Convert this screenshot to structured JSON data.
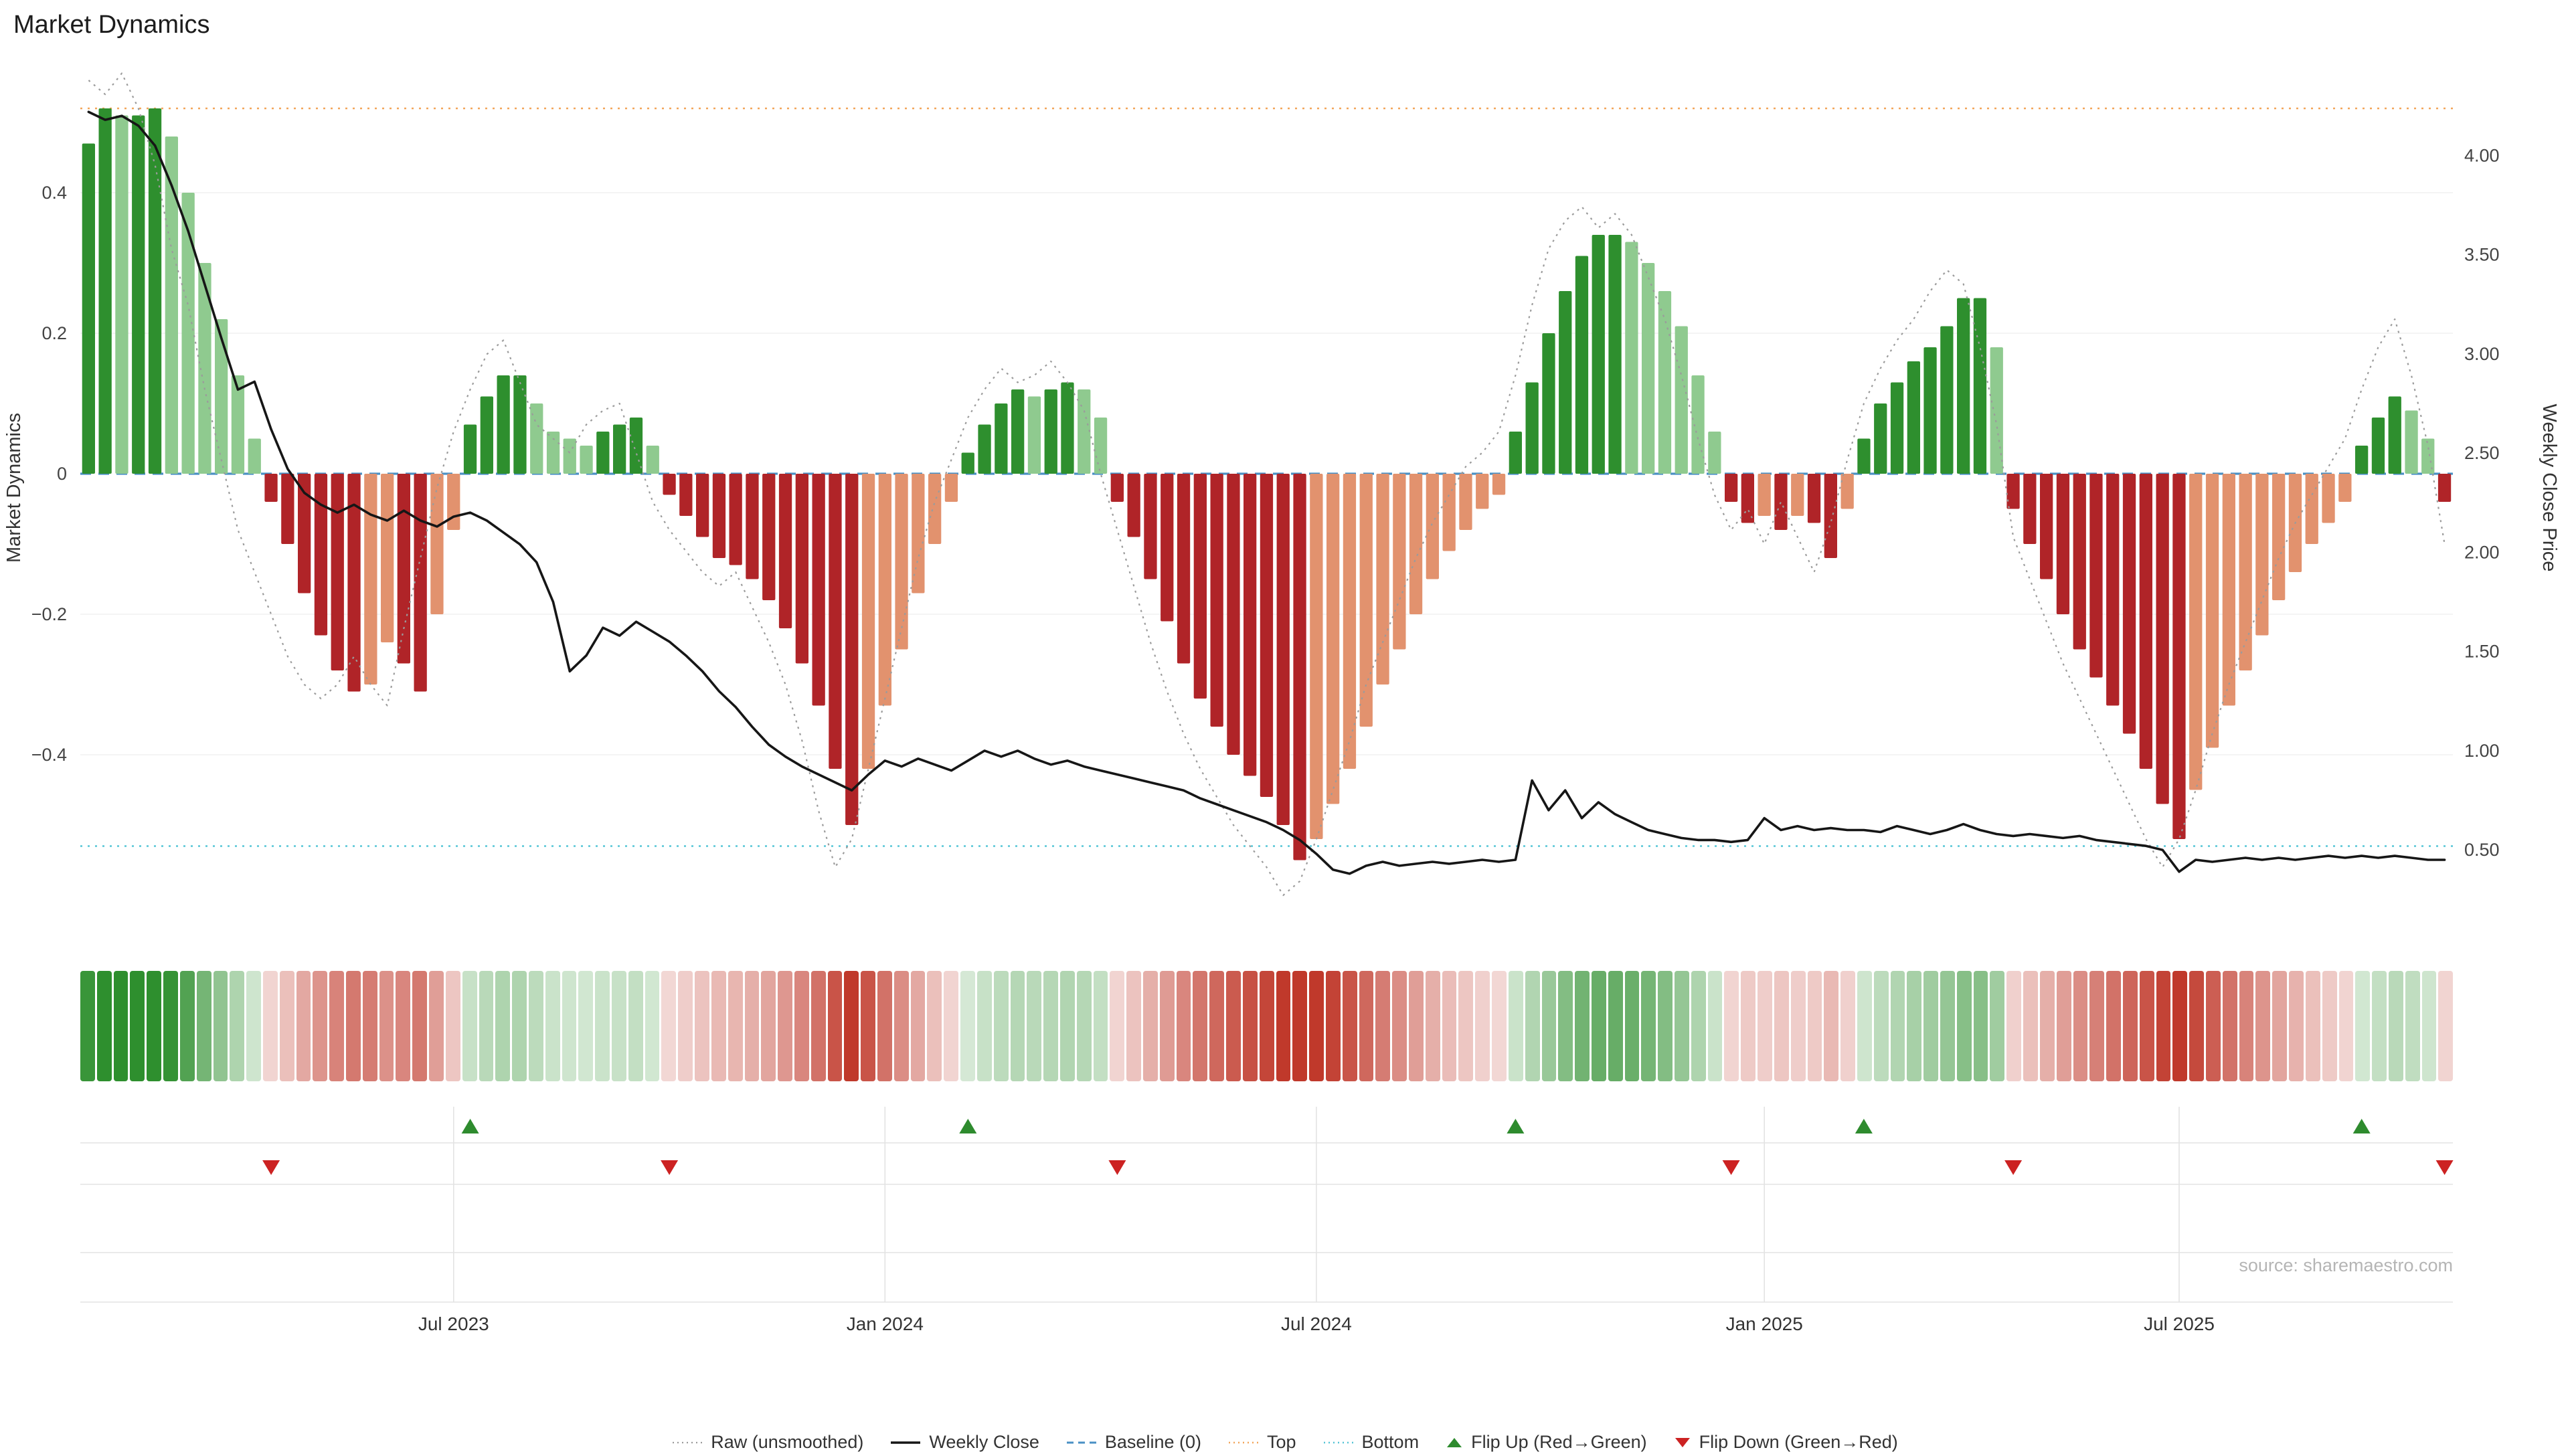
{
  "title": "Market Dynamics",
  "source_text": "source: sharemaestro.com",
  "axes": {
    "left_label": "Market Dynamics",
    "right_label": "Weekly Close Price",
    "left_ticks": [
      {
        "v": 0.4,
        "label": "0.4"
      },
      {
        "v": 0.2,
        "label": "0.2"
      },
      {
        "v": 0.0,
        "label": "0"
      },
      {
        "v": -0.2,
        "label": "−0.2"
      },
      {
        "v": -0.4,
        "label": "−0.4"
      }
    ],
    "right_ticks": [
      {
        "v": 4.0,
        "label": "4.00"
      },
      {
        "v": 3.5,
        "label": "3.50"
      },
      {
        "v": 3.0,
        "label": "3.00"
      },
      {
        "v": 2.5,
        "label": "2.50"
      },
      {
        "v": 2.0,
        "label": "2.00"
      },
      {
        "v": 1.5,
        "label": "1.50"
      },
      {
        "v": 1.0,
        "label": "1.00"
      },
      {
        "v": 0.5,
        "label": "0.50"
      }
    ],
    "x_ticks": [
      {
        "index": 22,
        "label": "Jul 2023"
      },
      {
        "index": 48,
        "label": "Jan 2024"
      },
      {
        "index": 74,
        "label": "Jul 2024"
      },
      {
        "index": 101,
        "label": "Jan 2025"
      },
      {
        "index": 126,
        "label": "Jul 2025"
      }
    ]
  },
  "legend": {
    "items": [
      {
        "id": "raw",
        "label": "Raw (unsmoothed)"
      },
      {
        "id": "weekly",
        "label": "Weekly Close"
      },
      {
        "id": "baseline",
        "label": "Baseline (0)"
      },
      {
        "id": "top",
        "label": "Top"
      },
      {
        "id": "bottom",
        "label": "Bottom"
      },
      {
        "id": "flip-up",
        "label": "Flip Up (Red→Green)"
      },
      {
        "id": "flip-down",
        "label": "Flip Down (Green→Red)"
      }
    ]
  },
  "chart_data": {
    "type": "bar+line",
    "title": "Market Dynamics",
    "left_ylabel": "Market Dynamics",
    "right_ylabel": "Weekly Close Price",
    "left_ylim": [
      -0.62,
      0.58
    ],
    "right_ylim": [
      0.2,
      4.45
    ],
    "baseline": 0,
    "top": 0.52,
    "bottom": -0.53,
    "oscillator": [
      0.47,
      0.52,
      0.51,
      0.51,
      0.52,
      0.48,
      0.4,
      0.3,
      0.22,
      0.14,
      0.05,
      -0.04,
      -0.1,
      -0.17,
      -0.23,
      -0.28,
      -0.31,
      -0.3,
      -0.24,
      -0.27,
      -0.31,
      -0.2,
      -0.08,
      0.07,
      0.11,
      0.14,
      0.14,
      0.1,
      0.06,
      0.05,
      0.04,
      0.06,
      0.07,
      0.08,
      0.04,
      -0.03,
      -0.06,
      -0.09,
      -0.12,
      -0.13,
      -0.15,
      -0.18,
      -0.22,
      -0.27,
      -0.33,
      -0.42,
      -0.5,
      -0.42,
      -0.33,
      -0.25,
      -0.17,
      -0.1,
      -0.04,
      0.03,
      0.07,
      0.1,
      0.12,
      0.11,
      0.12,
      0.13,
      0.12,
      0.08,
      -0.04,
      -0.09,
      -0.15,
      -0.21,
      -0.27,
      -0.32,
      -0.36,
      -0.4,
      -0.43,
      -0.46,
      -0.5,
      -0.55,
      -0.52,
      -0.47,
      -0.42,
      -0.36,
      -0.3,
      -0.25,
      -0.2,
      -0.15,
      -0.11,
      -0.08,
      -0.05,
      -0.03,
      0.06,
      0.13,
      0.2,
      0.26,
      0.31,
      0.34,
      0.34,
      0.33,
      0.3,
      0.26,
      0.21,
      0.14,
      0.06,
      -0.04,
      -0.07,
      -0.06,
      -0.08,
      -0.06,
      -0.07,
      -0.12,
      -0.05,
      0.05,
      0.1,
      0.13,
      0.16,
      0.18,
      0.21,
      0.25,
      0.25,
      0.18,
      -0.05,
      -0.1,
      -0.15,
      -0.2,
      -0.25,
      -0.29,
      -0.33,
      -0.37,
      -0.42,
      -0.47,
      -0.52,
      -0.45,
      -0.39,
      -0.33,
      -0.28,
      -0.23,
      -0.18,
      -0.14,
      -0.1,
      -0.07,
      -0.04,
      0.04,
      0.08,
      0.11,
      0.09,
      0.05,
      -0.04
    ],
    "raw": [
      0.56,
      0.54,
      0.57,
      0.52,
      0.44,
      0.32,
      0.24,
      0.12,
      0.02,
      -0.08,
      -0.14,
      -0.2,
      -0.26,
      -0.3,
      -0.32,
      -0.3,
      -0.26,
      -0.3,
      -0.33,
      -0.22,
      -0.12,
      -0.02,
      0.06,
      0.12,
      0.17,
      0.19,
      0.13,
      0.07,
      0.05,
      0.03,
      0.07,
      0.09,
      0.1,
      0.03,
      -0.04,
      -0.08,
      -0.11,
      -0.14,
      -0.16,
      -0.14,
      -0.19,
      -0.24,
      -0.3,
      -0.38,
      -0.48,
      -0.56,
      -0.52,
      -0.42,
      -0.32,
      -0.22,
      -0.12,
      -0.04,
      0.02,
      0.08,
      0.12,
      0.15,
      0.13,
      0.14,
      0.16,
      0.13,
      0.09,
      0.0,
      -0.08,
      -0.16,
      -0.24,
      -0.31,
      -0.37,
      -0.42,
      -0.46,
      -0.5,
      -0.53,
      -0.56,
      -0.6,
      -0.58,
      -0.52,
      -0.45,
      -0.38,
      -0.3,
      -0.24,
      -0.18,
      -0.12,
      -0.07,
      -0.03,
      0.01,
      0.03,
      0.06,
      0.14,
      0.24,
      0.32,
      0.36,
      0.38,
      0.35,
      0.37,
      0.34,
      0.28,
      0.22,
      0.14,
      0.05,
      -0.03,
      -0.08,
      -0.05,
      -0.1,
      -0.04,
      -0.09,
      -0.14,
      -0.07,
      0.02,
      0.1,
      0.15,
      0.19,
      0.22,
      0.26,
      0.29,
      0.27,
      0.18,
      0.07,
      -0.09,
      -0.15,
      -0.21,
      -0.27,
      -0.32,
      -0.37,
      -0.42,
      -0.47,
      -0.52,
      -0.56,
      -0.52,
      -0.45,
      -0.37,
      -0.3,
      -0.24,
      -0.18,
      -0.12,
      -0.07,
      -0.03,
      0.01,
      0.05,
      0.12,
      0.18,
      0.22,
      0.14,
      0.04,
      -0.1
    ],
    "price": [
      4.22,
      4.18,
      4.2,
      4.15,
      4.05,
      3.85,
      3.62,
      3.35,
      3.08,
      2.82,
      2.86,
      2.62,
      2.42,
      2.3,
      2.24,
      2.2,
      2.24,
      2.19,
      2.16,
      2.21,
      2.16,
      2.13,
      2.18,
      2.2,
      2.16,
      2.1,
      2.04,
      1.95,
      1.75,
      1.4,
      1.48,
      1.62,
      1.58,
      1.65,
      1.6,
      1.55,
      1.48,
      1.4,
      1.3,
      1.22,
      1.12,
      1.03,
      0.97,
      0.92,
      0.88,
      0.84,
      0.8,
      0.88,
      0.95,
      0.92,
      0.96,
      0.93,
      0.9,
      0.95,
      1.0,
      0.97,
      1.0,
      0.96,
      0.93,
      0.95,
      0.92,
      0.9,
      0.88,
      0.86,
      0.84,
      0.82,
      0.8,
      0.76,
      0.73,
      0.7,
      0.67,
      0.64,
      0.6,
      0.55,
      0.48,
      0.4,
      0.38,
      0.42,
      0.44,
      0.42,
      0.43,
      0.44,
      0.43,
      0.44,
      0.45,
      0.44,
      0.45,
      0.85,
      0.7,
      0.8,
      0.66,
      0.74,
      0.68,
      0.64,
      0.6,
      0.58,
      0.56,
      0.55,
      0.55,
      0.54,
      0.55,
      0.66,
      0.6,
      0.62,
      0.6,
      0.61,
      0.6,
      0.6,
      0.59,
      0.62,
      0.6,
      0.58,
      0.6,
      0.63,
      0.6,
      0.58,
      0.57,
      0.58,
      0.57,
      0.56,
      0.57,
      0.55,
      0.54,
      0.53,
      0.52,
      0.5,
      0.39,
      0.45,
      0.44,
      0.45,
      0.46,
      0.45,
      0.46,
      0.45,
      0.46,
      0.47,
      0.46,
      0.47,
      0.46,
      0.47,
      0.46,
      0.45,
      0.45
    ],
    "flip_up_weeks": [
      23,
      53,
      86,
      107,
      137
    ],
    "flip_down_weeks": [
      11,
      35,
      62,
      99,
      116,
      142
    ],
    "colors": {
      "bar_up_strong": "#2e8f2e",
      "bar_up_soft": "#8fca8f",
      "bar_down_strong": "#b02428",
      "bar_down_soft": "#e2926e",
      "price_line": "#161616",
      "raw_line": "#9b9b9b",
      "baseline": "#4a90c4",
      "top_line": "#f2a65a",
      "bottom_line": "#56c5d6",
      "flip_up": "#2e8b2e",
      "flip_down": "#cc2222",
      "heat_up": "#2e8f2e",
      "heat_down": "#c0392b",
      "grid": "#e3e3e3",
      "tick_text": "#444444",
      "source_text": "#b5b5b5"
    }
  }
}
